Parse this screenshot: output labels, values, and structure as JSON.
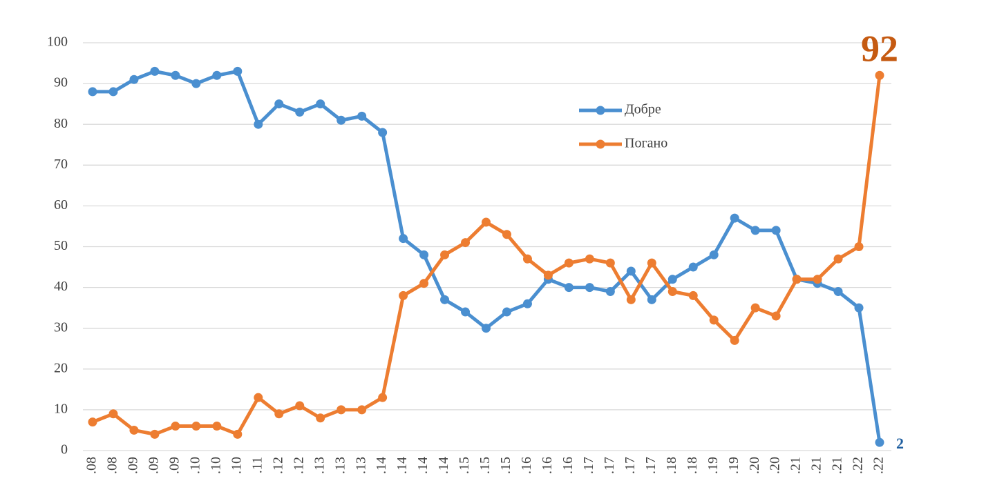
{
  "chart_data": {
    "type": "line",
    "categories": [
      ".08",
      ".08",
      ".09",
      ".09",
      ".09",
      ".10",
      ".10",
      ".10",
      ".11",
      ".12",
      ".12",
      ".13",
      ".13",
      ".13",
      ".14",
      ".14",
      ".14",
      ".14",
      ".15",
      ".15",
      ".15",
      ".16",
      ".16",
      ".16",
      ".17",
      ".17",
      ".17",
      ".17",
      ".18",
      ".18",
      ".19",
      ".19",
      ".20",
      ".20",
      ".21",
      ".21",
      ".21",
      ".22",
      ".22"
    ],
    "series": [
      {
        "name": "Добре",
        "color": "#4a8fd0",
        "values": [
          88,
          88,
          91,
          93,
          92,
          90,
          92,
          93,
          80,
          85,
          83,
          85,
          81,
          82,
          78,
          52,
          48,
          37,
          34,
          30,
          34,
          36,
          42,
          40,
          40,
          39,
          44,
          37,
          42,
          45,
          48,
          57,
          54,
          54,
          42,
          41,
          39,
          35,
          2
        ]
      },
      {
        "name": "Погано",
        "color": "#ed7d31",
        "values": [
          7,
          9,
          5,
          4,
          6,
          6,
          6,
          4,
          13,
          9,
          11,
          8,
          10,
          10,
          13,
          38,
          41,
          48,
          51,
          56,
          53,
          47,
          43,
          46,
          47,
          46,
          37,
          46,
          39,
          38,
          32,
          27,
          35,
          33,
          42,
          42,
          47,
          50,
          92
        ]
      }
    ],
    "annotations": [
      {
        "text": "92",
        "color": "#c55a11"
      },
      {
        "text": "2",
        "color": "#1f5fa0"
      }
    ],
    "ylim": [
      0,
      100
    ],
    "yticks": [
      0,
      10,
      20,
      30,
      40,
      50,
      60,
      70,
      80,
      90,
      100
    ],
    "grid": true,
    "legend": "upper-center"
  }
}
